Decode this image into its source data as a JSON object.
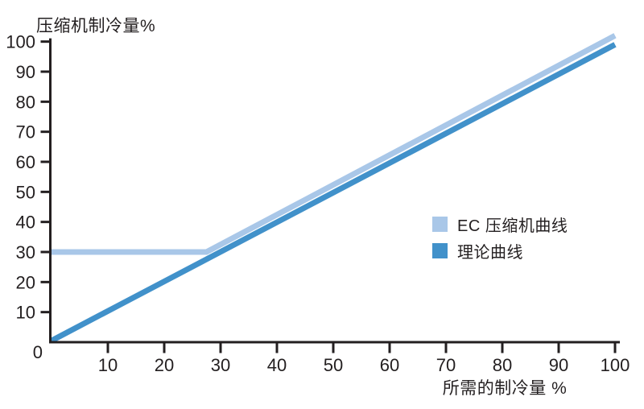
{
  "page": {
    "background": "#ffffff"
  },
  "chart_data": {
    "type": "line",
    "title": "",
    "y_axis_label": "压缩机制冷量%",
    "x_axis_label": "所需的制冷量 %",
    "xlim": [
      0,
      100
    ],
    "ylim": [
      0,
      100
    ],
    "x_ticks": [
      10,
      20,
      30,
      40,
      50,
      60,
      70,
      80,
      90,
      100
    ],
    "y_ticks": [
      10,
      20,
      30,
      40,
      50,
      60,
      70,
      80,
      90,
      100
    ],
    "origin_label": "0",
    "grid": false,
    "legend_position": "right-middle",
    "series": [
      {
        "name": "EC 压缩机曲线",
        "color": "#a9c7e8",
        "points": [
          [
            0,
            30
          ],
          [
            27.5,
            30
          ],
          [
            100,
            102
          ]
        ]
      },
      {
        "name": "理论曲线",
        "color": "#4191ca",
        "points": [
          [
            0,
            0.5
          ],
          [
            100,
            99
          ]
        ]
      }
    ]
  },
  "colors": {
    "axis": "#231f20",
    "text": "#231f20"
  }
}
